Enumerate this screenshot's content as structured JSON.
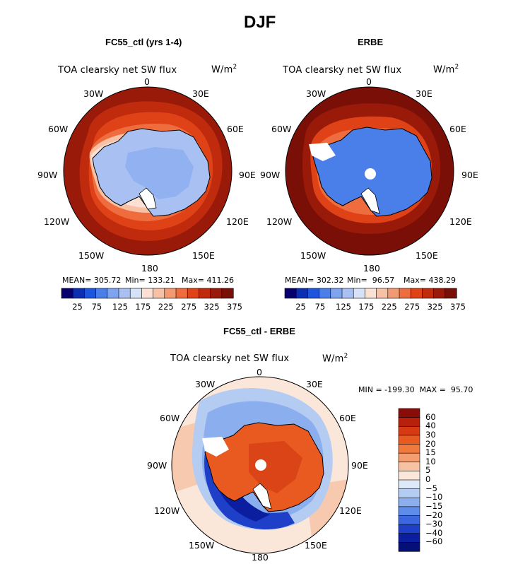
{
  "figure": {
    "season": "DJF"
  },
  "panels": [
    {
      "subtitle": "FC55_ctl (yrs 1-4)",
      "field_label": "TOA clearsky net SW flux",
      "units": "W/m",
      "units_sup": "2",
      "stats": {
        "mean": "MEAN= 305.72",
        "min": "Min= 133.21",
        "max": "Max= 411.26"
      },
      "colorbar_labels": [
        "25",
        "75",
        "125",
        "175",
        "225",
        "275",
        "325",
        "375"
      ]
    },
    {
      "subtitle": "ERBE",
      "field_label": "TOA clearsky net SW flux",
      "units": "W/m",
      "units_sup": "2",
      "stats": {
        "mean": "MEAN= 302.32",
        "min": "Min=  96.57",
        "max": "Max= 438.29"
      },
      "colorbar_labels": [
        "25",
        "75",
        "125",
        "175",
        "225",
        "275",
        "325",
        "375"
      ]
    },
    {
      "subtitle": "FC55_ctl - ERBE",
      "field_label": "TOA clearsky net SW flux",
      "units": "W/m",
      "units_sup": "2",
      "stats_line": "MIN = -199.30  MAX =  95.70",
      "colorbar_labels": [
        "60",
        "40",
        "30",
        "20",
        "15",
        "10",
        "5",
        "0",
        "−5",
        "−10",
        "−15",
        "−20",
        "−30",
        "−40",
        "−60"
      ]
    }
  ],
  "longitude_labels": {
    "n0": "0",
    "n30e": "30E",
    "n60e": "60E",
    "n90e": "90E",
    "n120e": "120E",
    "n150e": "150E",
    "n180": "180",
    "n150w": "150W",
    "n120w": "120W",
    "n90w": "90W",
    "n60w": "60W",
    "n30w": "30W"
  },
  "colors": {
    "abs_scale": [
      "#08006e",
      "#0b2fb0",
      "#1e55dd",
      "#4a7ee8",
      "#7ea4ef",
      "#a9c1f2",
      "#d6e2f7",
      "#fbe0d3",
      "#f8c0a4",
      "#f49a73",
      "#ee6c3e",
      "#e04218",
      "#c02a0d",
      "#9a1a0a",
      "#7a0f08"
    ],
    "diff_scale_top_to_bottom": [
      "#8a0c08",
      "#b8200c",
      "#d63a12",
      "#e85a20",
      "#f07a3e",
      "#f39e70",
      "#f6c2a4",
      "#fbe6da",
      "#dde8f8",
      "#b4cbf2",
      "#8aaeee",
      "#5e8cea",
      "#3b66e0",
      "#1e3fc7",
      "#0b1ea0",
      "#050f78"
    ]
  }
}
